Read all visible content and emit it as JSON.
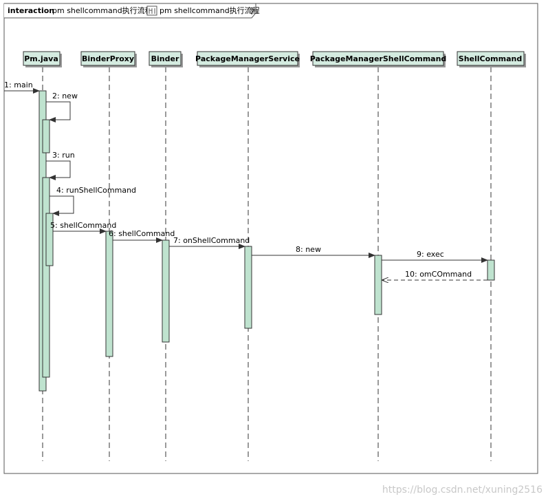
{
  "frame": {
    "keyword": "interaction",
    "title_prefix": "pm shellcommand执行流程 [",
    "title_inner": "pm shellcommand执行流程",
    "title_suffix": "]"
  },
  "lifelines": [
    {
      "label": "Pm.java"
    },
    {
      "label": "BinderProxy"
    },
    {
      "label": "Binder"
    },
    {
      "label": "PackageManagerService"
    },
    {
      "label": "PackageManagerShellCommand"
    },
    {
      "label": "ShellCommand"
    }
  ],
  "messages": [
    {
      "label": "1: main"
    },
    {
      "label": "2: new"
    },
    {
      "label": "3: run"
    },
    {
      "label": "4: runShellCommand"
    },
    {
      "label": "5: shellCommand"
    },
    {
      "label": "6: shellCommand"
    },
    {
      "label": "7: onShellCommand"
    },
    {
      "label": "8: new"
    },
    {
      "label": "9: exec"
    },
    {
      "label": "10: omCOmmand"
    }
  ],
  "watermark": "https://blog.csdn.net/xuning2516",
  "colors": {
    "activation_fill": "#bfe3cf",
    "header_fill": "#d4ebe0",
    "line": "#333333"
  }
}
